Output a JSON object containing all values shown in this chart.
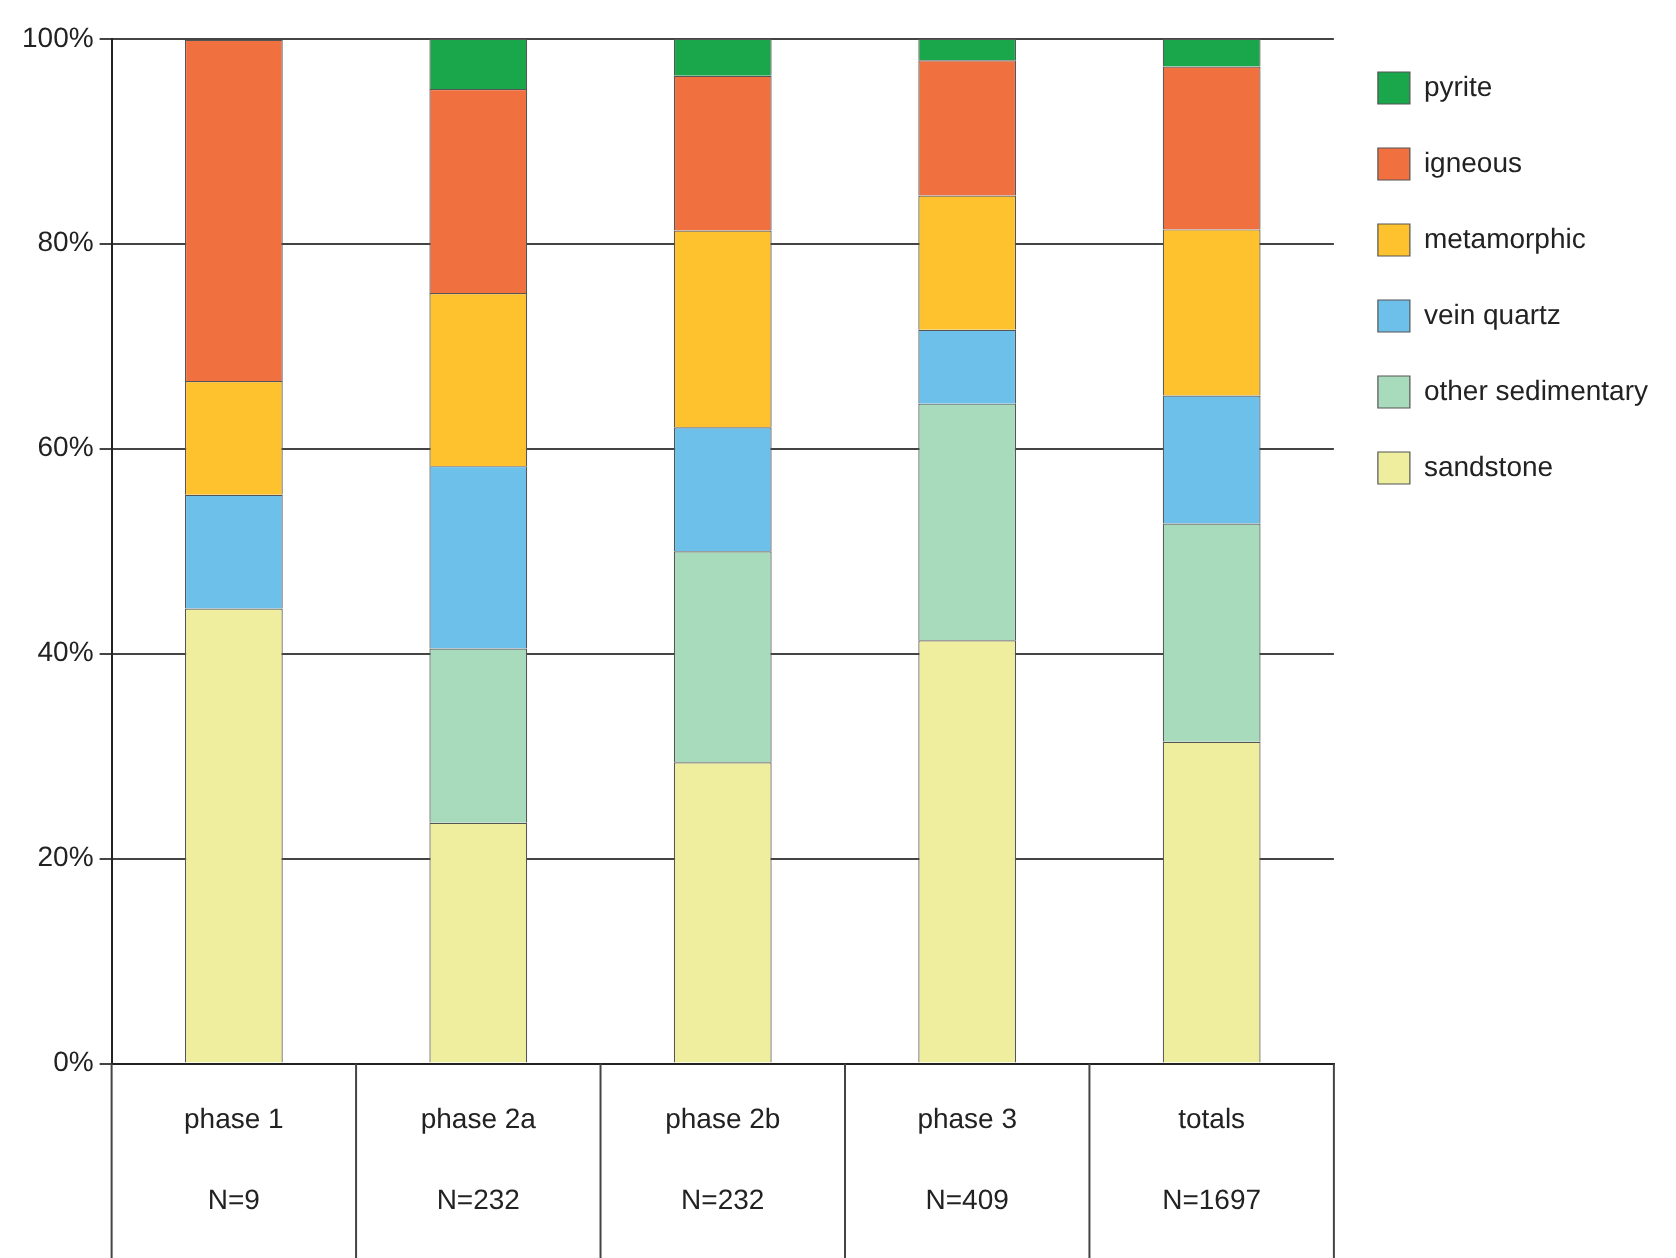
{
  "chart_data": {
    "type": "bar",
    "stacked": true,
    "categories": [
      "phase 1\nN=9",
      "phase 2a\nN=232",
      "phase 2b\nN=232",
      "phase 3\nN=409",
      "totals\nN=1697"
    ],
    "series": [
      {
        "name": "sandstone",
        "color": "#eeee9e",
        "values": [
          44.4,
          23.5,
          29.4,
          41.3,
          31.4
        ]
      },
      {
        "name": "other sedimentary",
        "color": "#a8dbbb",
        "values": [
          0,
          17.0,
          20.6,
          23.1,
          21.3
        ]
      },
      {
        "name": "vein quartz",
        "color": "#6cc0ea",
        "values": [
          11.1,
          17.8,
          12.1,
          7.2,
          12.5
        ]
      },
      {
        "name": "metamorphic",
        "color": "#fdc22e",
        "values": [
          11.1,
          16.9,
          19.2,
          13.1,
          16.2
        ]
      },
      {
        "name": "igneous",
        "color": "#f07040",
        "values": [
          33.3,
          19.9,
          15.1,
          13.2,
          15.9
        ]
      },
      {
        "name": "pyrite",
        "color": "#1aa64a",
        "values": [
          0,
          4.9,
          3.6,
          2.1,
          2.7
        ]
      }
    ],
    "ylim": [
      0,
      100
    ],
    "yticks": [
      {
        "value": 0,
        "label": "0%"
      },
      {
        "value": 20,
        "label": "20%"
      },
      {
        "value": 40,
        "label": "40%"
      },
      {
        "value": 60,
        "label": "60%"
      },
      {
        "value": 80,
        "label": "80%"
      },
      {
        "value": 100,
        "label": "100%"
      }
    ],
    "grid": "y",
    "legend": "top right"
  }
}
